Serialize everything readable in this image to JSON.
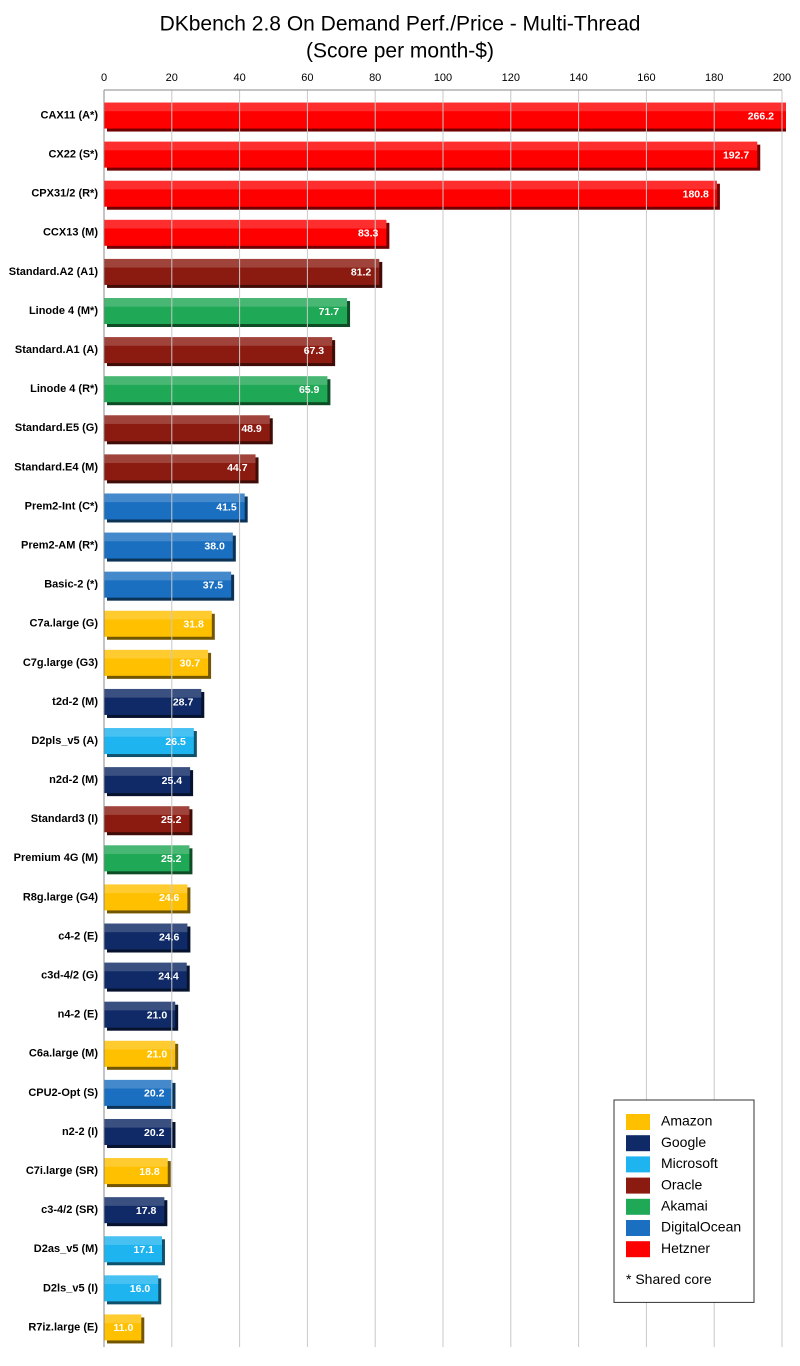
{
  "chart_data": {
    "type": "hbar",
    "title": "DKbench 2.8 On Demand Perf./Price - Multi-Thread",
    "subtitle": "(Score per month-$)",
    "categories": [
      "CAX11 (A*)",
      "CX22 (S*)",
      "CPX31/2 (R*)",
      "CCX13 (M)",
      "Standard.A2 (A1)",
      "Linode 4 (M*)",
      "Standard.A1 (A)",
      "Linode 4 (R*)",
      "Standard.E5 (G)",
      "Standard.E4 (M)",
      "Prem2-Int (C*)",
      "Prem2-AM (R*)",
      "Basic-2 (*)",
      "C7a.large (G)",
      "C7g.large (G3)",
      "t2d-2 (M)",
      "D2pls_v5 (A)",
      "n2d-2 (M)",
      "Standard3 (I)",
      "Premium 4G (M)",
      "R8g.large (G4)",
      "c4-2 (E)",
      "c3d-4/2 (G)",
      "n4-2 (E)",
      "C6a.large (M)",
      "CPU2-Opt (S)",
      "n2-2 (I)",
      "C7i.large (SR)",
      "c3-4/2 (SR)",
      "D2as_v5 (M)",
      "D2ls_v5 (I)",
      "R7iz.large (E)"
    ],
    "values": [
      266.2,
      192.7,
      180.8,
      83.3,
      81.2,
      71.7,
      67.3,
      65.9,
      48.9,
      44.7,
      41.5,
      38.0,
      37.5,
      31.8,
      30.7,
      28.7,
      26.5,
      25.4,
      25.2,
      25.2,
      24.6,
      24.6,
      24.4,
      21.0,
      21.0,
      20.2,
      20.2,
      18.8,
      17.8,
      17.1,
      16.0,
      11.0
    ],
    "value_labels": [
      "266.2",
      "192.7",
      "180.8",
      "83.3",
      "81.2",
      "71.7",
      "67.3",
      "65.9",
      "48.9",
      "44.7",
      "41.5",
      "38.0",
      "37.5",
      "31.8",
      "30.7",
      "28.7",
      "26.5",
      "25.4",
      "25.2",
      "25.2",
      "24.6",
      "24.6",
      "24.4",
      "21.0",
      "21.0",
      "20.2",
      "20.2",
      "18.8",
      "17.8",
      "17.1",
      "16.0",
      "11.0"
    ],
    "colors": [
      "#ff0000",
      "#ff0000",
      "#ff0000",
      "#ff0000",
      "#8b1a10",
      "#1fa855",
      "#8b1a10",
      "#1fa855",
      "#8b1a10",
      "#8b1a10",
      "#1a6fc0",
      "#1a6fc0",
      "#1a6fc0",
      "#ffc000",
      "#ffc000",
      "#0f2a66",
      "#1eb4f0",
      "#0f2a66",
      "#8b1a10",
      "#1fa855",
      "#ffc000",
      "#0f2a66",
      "#0f2a66",
      "#0f2a66",
      "#ffc000",
      "#1a6fc0",
      "#0f2a66",
      "#ffc000",
      "#0f2a66",
      "#1eb4f0",
      "#1eb4f0",
      "#ffc000"
    ],
    "xlim": [
      0,
      200
    ],
    "xticks": [
      0,
      20,
      40,
      60,
      80,
      100,
      120,
      140,
      160,
      180,
      200
    ],
    "grid": true,
    "legend_position": "lower right",
    "legend": [
      {
        "name": "Amazon",
        "color": "#ffc000"
      },
      {
        "name": "Google",
        "color": "#0f2a66"
      },
      {
        "name": "Microsoft",
        "color": "#1eb4f0"
      },
      {
        "name": "Oracle",
        "color": "#8b1a10"
      },
      {
        "name": "Akamai",
        "color": "#1fa855"
      },
      {
        "name": "DigitalOcean",
        "color": "#1a6fc0"
      },
      {
        "name": "Hetzner",
        "color": "#ff0000"
      }
    ],
    "legend_note": "* Shared core"
  }
}
